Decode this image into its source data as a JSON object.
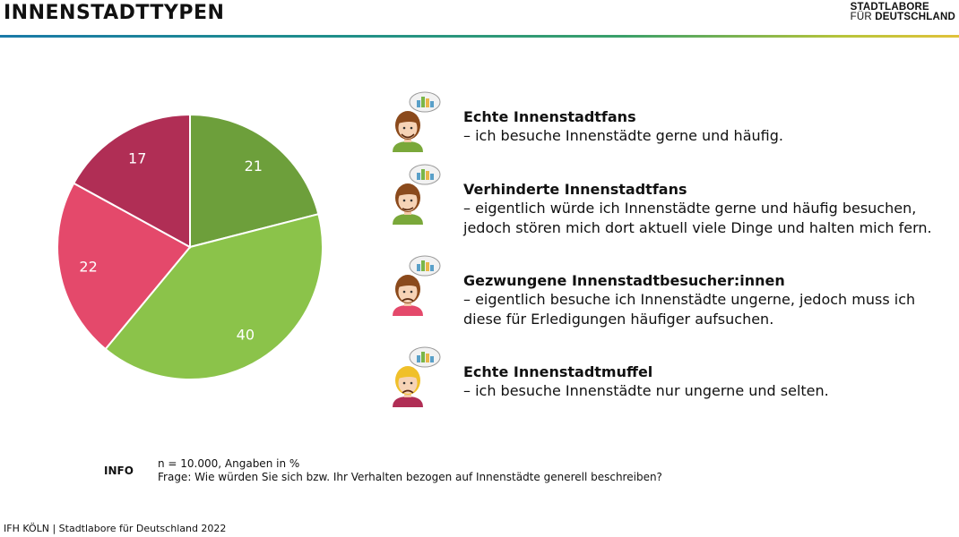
{
  "header": {
    "title": "INNENSTADTTYPEN",
    "brand_line1": "STADTLABORE",
    "brand_line2a": "FÜR ",
    "brand_line2b": "DEUTSCHLAND"
  },
  "chart_data": {
    "type": "pie",
    "title": "",
    "slices": [
      {
        "label": "Echte Innenstadtfans",
        "value": 21,
        "color": "#6d9f3b"
      },
      {
        "label": "Verhinderte Innenstadtfans",
        "value": 40,
        "color": "#8bc34a"
      },
      {
        "label": "Gezwungene Innenstadtbesucher:innen",
        "value": 22,
        "color": "#e4496b"
      },
      {
        "label": "Echte Innenstadtmuffel",
        "value": 17,
        "color": "#b02e55"
      }
    ],
    "unit": "%"
  },
  "legend": [
    {
      "title": "Echte Innenstadtfans",
      "desc_lines": [
        "– ich besuche Innenstädte gerne und häufig."
      ],
      "avatar": {
        "name": "happy-person-icon",
        "hair": "#8b4a1c",
        "shirt": "#7aa83a"
      }
    },
    {
      "title": "Verhinderte Innenstadtfans",
      "desc_lines": [
        "– eigentlich würde ich Innenstädte gerne und häufig besuchen,",
        "jedoch stören mich dort aktuell viele Dinge und halten mich fern."
      ],
      "avatar": {
        "name": "thoughtful-person-icon",
        "hair": "#8b4a1c",
        "shirt": "#7aa83a"
      }
    },
    {
      "title": "Gezwungene Innenstadtbesucher:innen",
      "desc_lines": [
        "– eigentlich besuche ich Innenstädte ungerne, jedoch muss ich",
        "diese für Erledigungen häufiger aufsuchen."
      ],
      "avatar": {
        "name": "frustrated-person-icon",
        "hair": "#8b4a1c",
        "shirt": "#e4496b"
      }
    },
    {
      "title": "Echte Innenstadtmuffel",
      "desc_lines": [
        "– ich besuche Innenstädte nur ungerne und selten."
      ],
      "avatar": {
        "name": "grumpy-person-icon",
        "hair": "#f0c02a",
        "shirt": "#b02e55"
      }
    }
  ],
  "info": {
    "label": "INFO",
    "line1": "n = 10.000, Angaben in %",
    "line2": "Frage: Wie würden Sie sich bzw. Ihr Verhalten bezogen auf Innenstädte generell beschreiben?"
  },
  "footer": {
    "text": "IFH KÖLN | Stadtlabore für Deutschland 2022"
  }
}
